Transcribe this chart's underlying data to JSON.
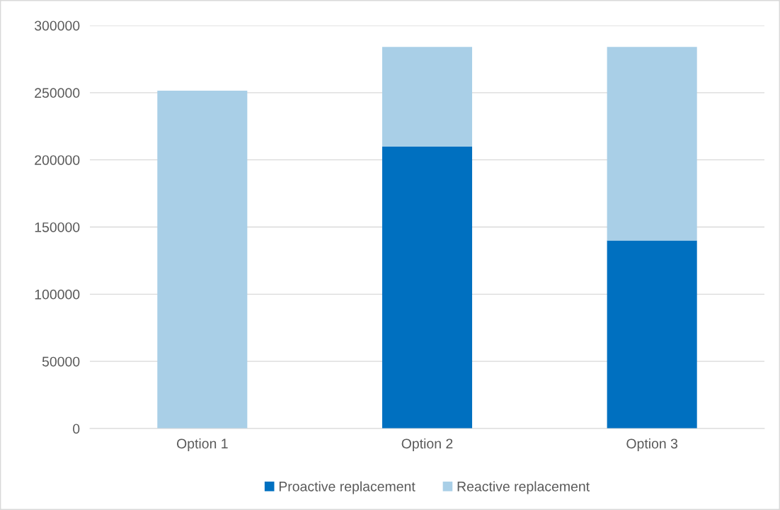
{
  "chart_data": {
    "type": "bar",
    "stacked": true,
    "categories": [
      "Option 1",
      "Option 2",
      "Option 3"
    ],
    "series": [
      {
        "name": "Proactive replacement",
        "color": "#0070c0",
        "values": [
          0,
          210000,
          140000
        ]
      },
      {
        "name": "Reactive replacement",
        "color": "#a9cfe7",
        "values": [
          251500,
          74000,
          144000
        ]
      }
    ],
    "ylim": [
      0,
      300000
    ],
    "yticks": [
      0,
      50000,
      100000,
      150000,
      200000,
      250000,
      300000
    ],
    "grid": "y",
    "legend": "bottom"
  }
}
